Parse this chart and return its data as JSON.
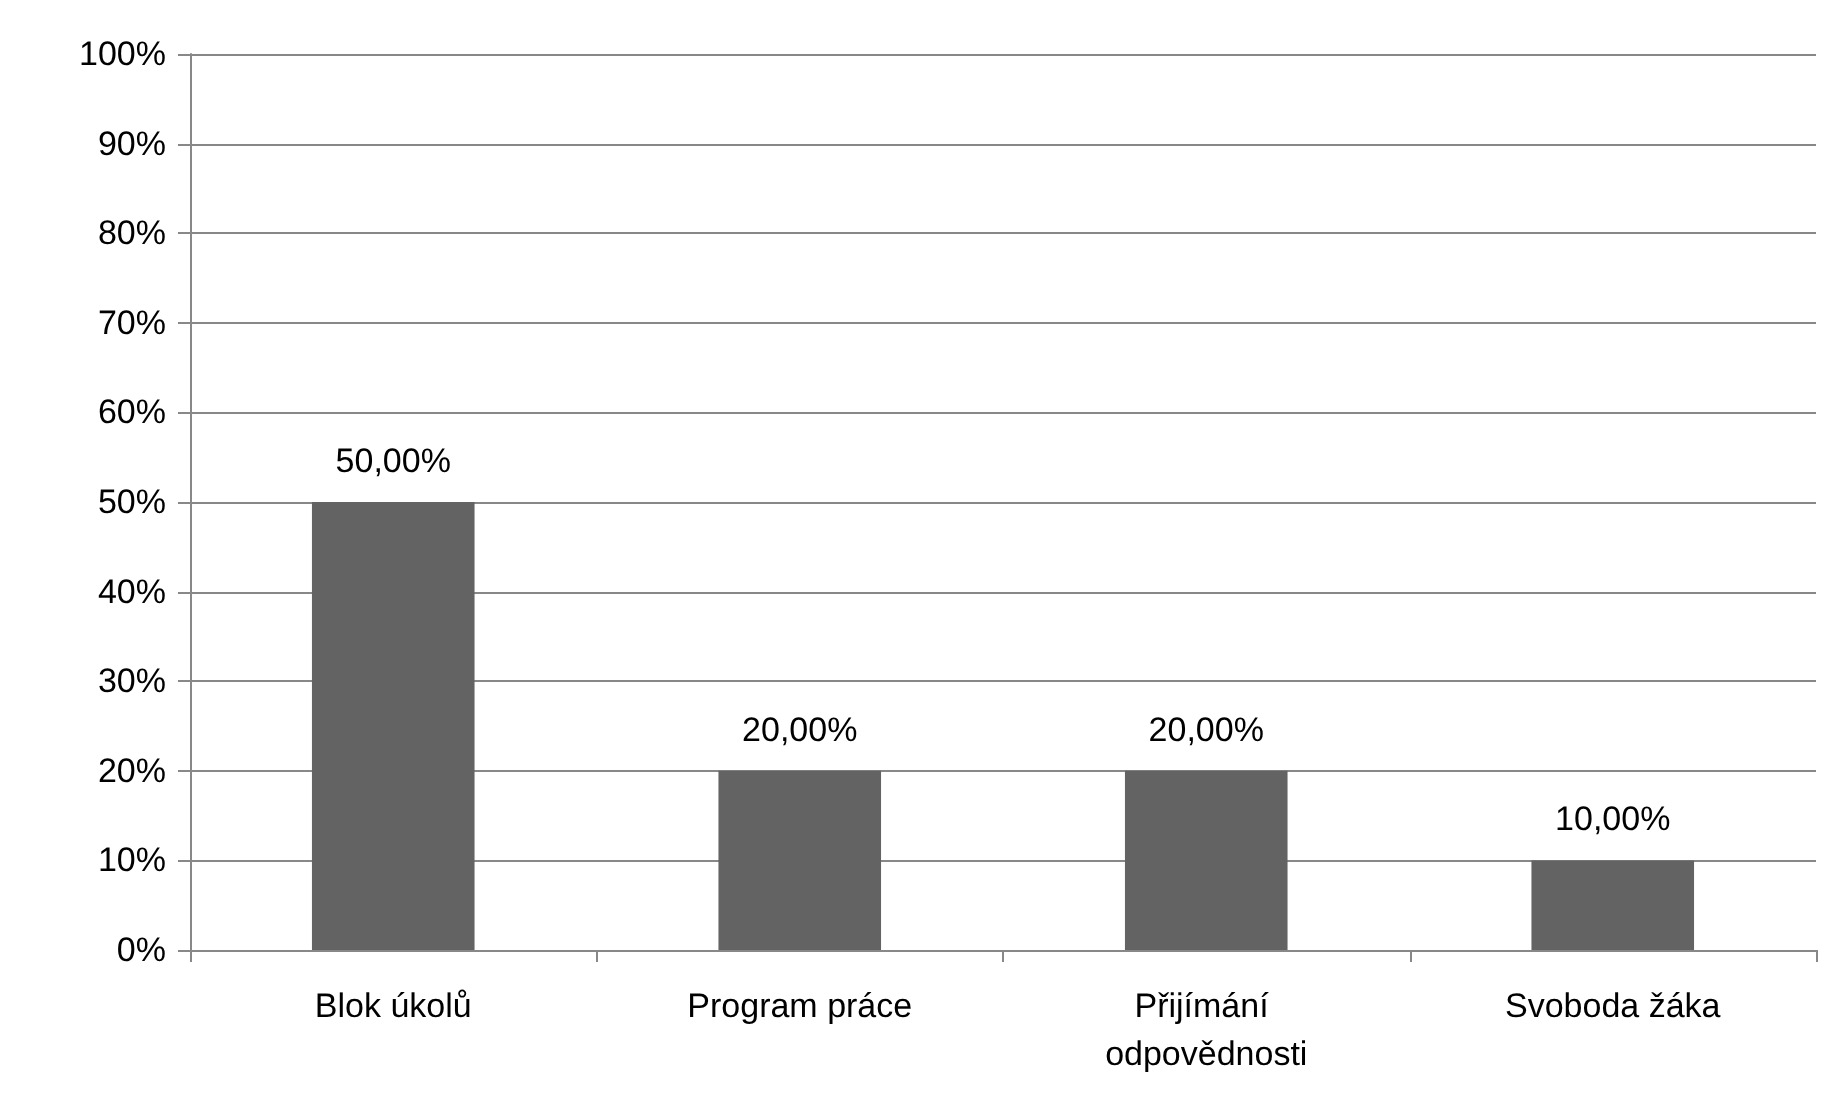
{
  "chart_data": {
    "type": "bar",
    "categories": [
      "Blok úkolů",
      "Program práce",
      "Přijímání odpovědnosti",
      "Svoboda žáka"
    ],
    "values": [
      50,
      20,
      20,
      10
    ],
    "color": "#636363",
    "value_labels": [
      "50,00%",
      "20,00%",
      "20,00%",
      "10,00%"
    ],
    "ylim": [
      0,
      100
    ],
    "yticks": [
      {
        "value": 0,
        "label": "0%"
      },
      {
        "value": 10,
        "label": "10%"
      },
      {
        "value": 20,
        "label": "20%"
      },
      {
        "value": 30,
        "label": "30%"
      },
      {
        "value": 40,
        "label": "40%"
      },
      {
        "value": 50,
        "label": "50%"
      },
      {
        "value": 60,
        "label": "60%"
      },
      {
        "value": 70,
        "label": "70%"
      },
      {
        "value": 80,
        "label": "80%"
      },
      {
        "value": 90,
        "label": "90%"
      },
      {
        "value": 100,
        "label": "100%"
      }
    ],
    "grid": "y"
  }
}
